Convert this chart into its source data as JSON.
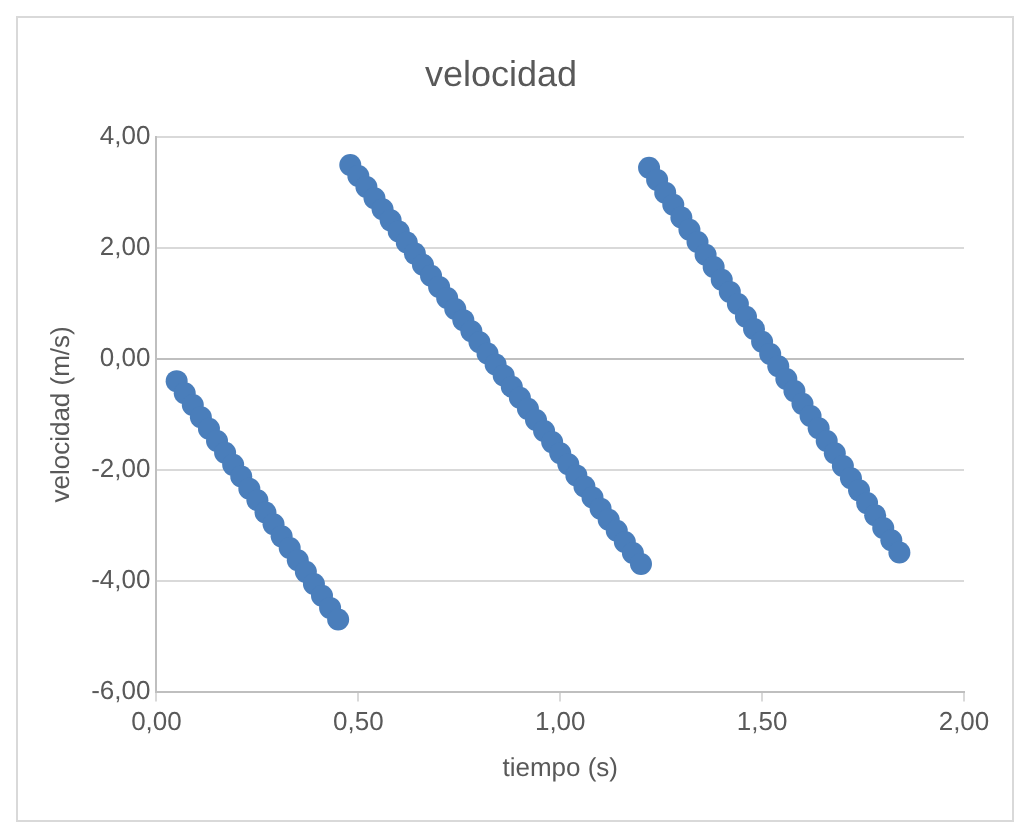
{
  "chart_data": {
    "type": "scatter",
    "title": "velocidad",
    "xlabel": "tiempo (s)",
    "ylabel": "velocidad (m/s)",
    "x": [
      0.05,
      0.07,
      0.09,
      0.11,
      0.13,
      0.15,
      0.17,
      0.19,
      0.21,
      0.23,
      0.25,
      0.27,
      0.29,
      0.31,
      0.33,
      0.35,
      0.37,
      0.39,
      0.41,
      0.43,
      0.45,
      0.48,
      0.5,
      0.52,
      0.54,
      0.56,
      0.58,
      0.6,
      0.62,
      0.64,
      0.66,
      0.68,
      0.7,
      0.72,
      0.74,
      0.76,
      0.78,
      0.8,
      0.82,
      0.84,
      0.86,
      0.88,
      0.9,
      0.92,
      0.94,
      0.96,
      0.98,
      1.0,
      1.02,
      1.04,
      1.06,
      1.08,
      1.1,
      1.12,
      1.14,
      1.16,
      1.18,
      1.2,
      1.22,
      1.24,
      1.26,
      1.28,
      1.3,
      1.32,
      1.34,
      1.36,
      1.38,
      1.4,
      1.42,
      1.44,
      1.46,
      1.48,
      1.5,
      1.52,
      1.54,
      1.56,
      1.58,
      1.6,
      1.62,
      1.64,
      1.66,
      1.68,
      1.7,
      1.72,
      1.74,
      1.76,
      1.78,
      1.8,
      1.82,
      1.84
    ],
    "series": [
      {
        "color": "#4a7ebb",
        "values": [
          -0.4,
          -0.62,
          -0.83,
          -1.05,
          -1.26,
          -1.48,
          -1.69,
          -1.91,
          -2.12,
          -2.34,
          -2.55,
          -2.77,
          -2.98,
          -3.2,
          -3.41,
          -3.63,
          -3.84,
          -4.06,
          -4.27,
          -4.49,
          -4.7,
          3.5,
          3.3,
          3.1,
          2.9,
          2.7,
          2.5,
          2.3,
          2.1,
          1.9,
          1.7,
          1.5,
          1.3,
          1.1,
          0.9,
          0.7,
          0.5,
          0.3,
          0.1,
          -0.1,
          -0.3,
          -0.5,
          -0.7,
          -0.9,
          -1.1,
          -1.3,
          -1.5,
          -1.7,
          -1.9,
          -2.1,
          -2.3,
          -2.5,
          -2.7,
          -2.9,
          -3.1,
          -3.3,
          -3.5,
          -3.7,
          3.45,
          3.23,
          3.0,
          2.78,
          2.55,
          2.33,
          2.11,
          1.88,
          1.66,
          1.43,
          1.21,
          0.99,
          0.76,
          0.54,
          0.31,
          0.09,
          -0.13,
          -0.36,
          -0.58,
          -0.81,
          -1.03,
          -1.25,
          -1.48,
          -1.7,
          -1.93,
          -2.15,
          -2.37,
          -2.6,
          -2.82,
          -3.05,
          -3.27,
          -3.49
        ]
      }
    ],
    "xlim": [
      0,
      2
    ],
    "xticks": [
      {
        "value": 0,
        "label": "0,00"
      },
      {
        "value": 0.5,
        "label": "0,50"
      },
      {
        "value": 1,
        "label": "1,00"
      },
      {
        "value": 1.5,
        "label": "1,50"
      },
      {
        "value": 2,
        "label": "2,00"
      }
    ],
    "ylim": [
      -6,
      4
    ],
    "yticks": [
      {
        "value": -6,
        "label": "-6,00"
      },
      {
        "value": -4,
        "label": "-4,00"
      },
      {
        "value": -2,
        "label": "-2,00"
      },
      {
        "value": 0,
        "label": "0,00"
      },
      {
        "value": 2,
        "label": "2,00"
      },
      {
        "value": 4,
        "label": "4,00"
      }
    ],
    "grid": "y",
    "legend": false,
    "marker": "circle"
  }
}
